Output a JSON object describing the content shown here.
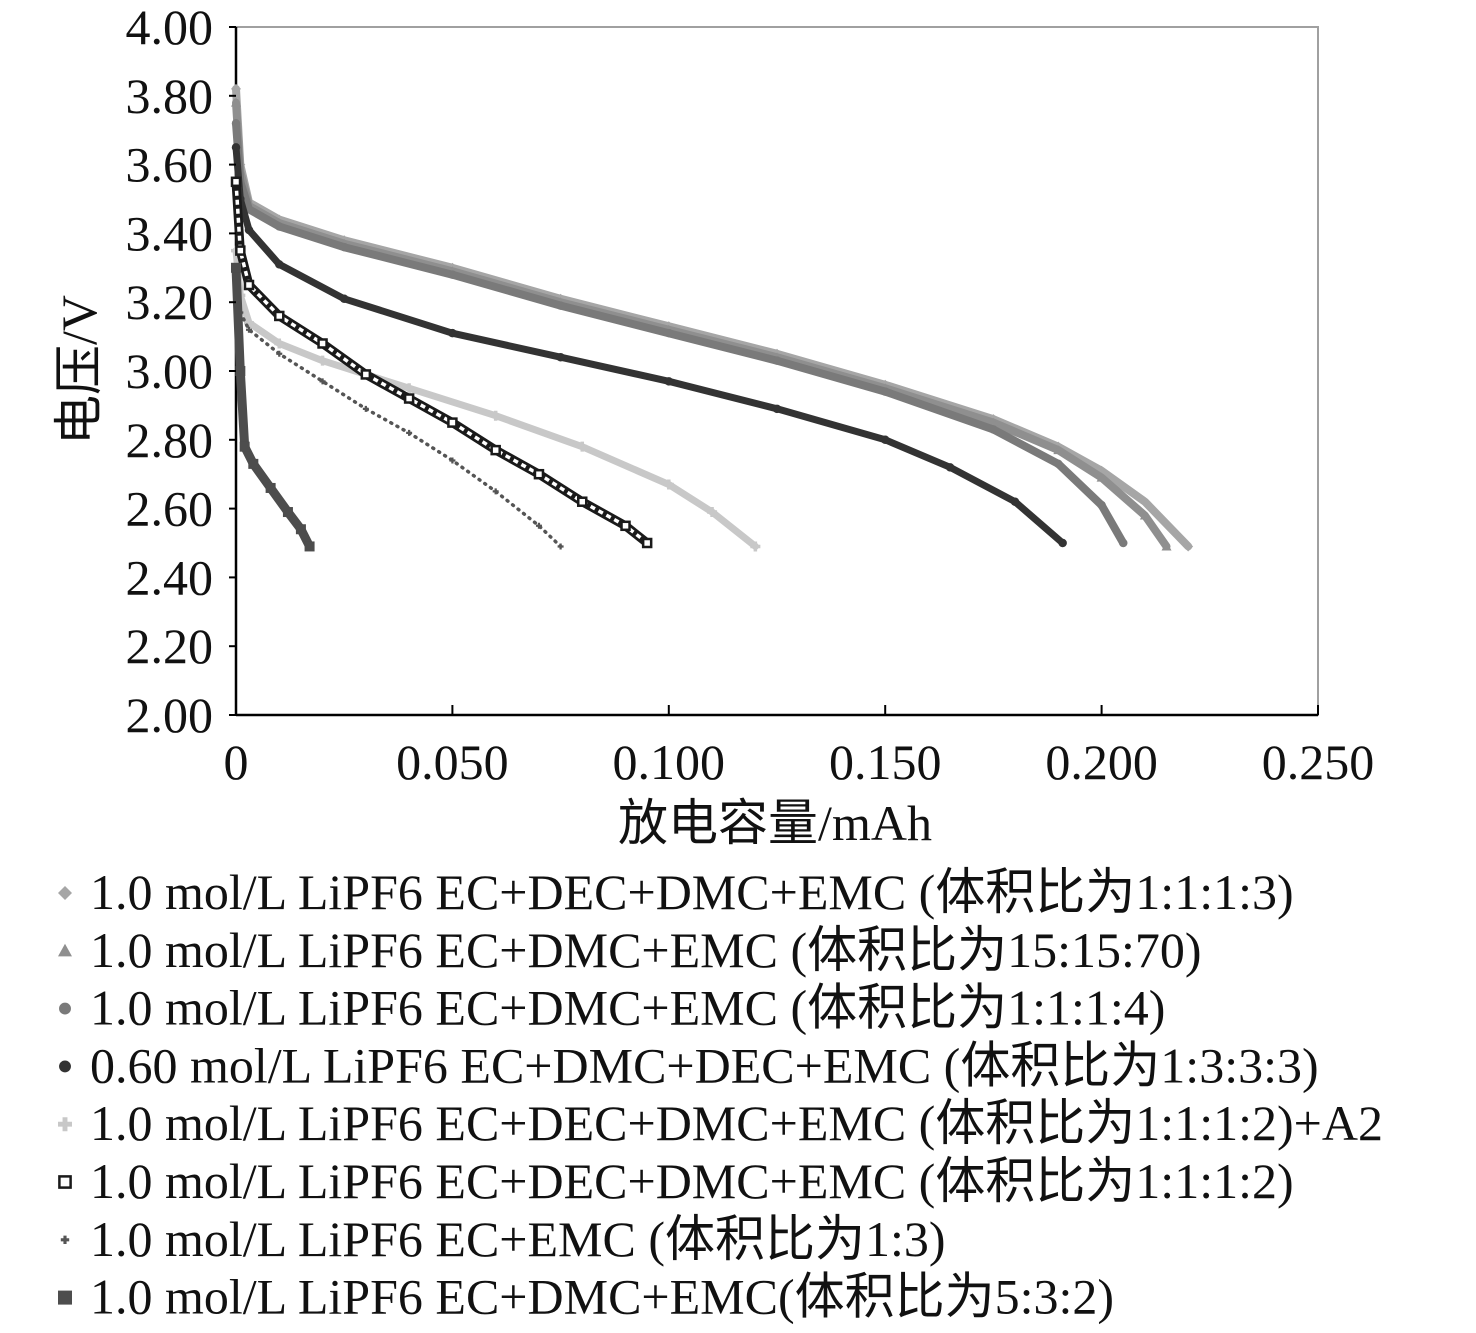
{
  "chart_data": {
    "type": "line",
    "xlabel": "放电容量/mAh",
    "ylabel": "电压/V",
    "xlim": [
      0,
      0.25
    ],
    "ylim": [
      2.0,
      4.0
    ],
    "xticks": [
      "0",
      "0.050",
      "0.100",
      "0.150",
      "0.200",
      "0.250"
    ],
    "yticks": [
      "2.00",
      "2.20",
      "2.40",
      "2.60",
      "2.80",
      "3.00",
      "3.20",
      "3.40",
      "3.60",
      "3.80",
      "4.00"
    ],
    "grid": false,
    "legend": "bottom",
    "series": [
      {
        "name": "1.0 mol/L LiPF6 EC+DEC+DMC+EMC (体积比为1:1:1:3)",
        "marker": "diamond",
        "color": "#a6a6a6",
        "x": [
          0,
          0.001,
          0.003,
          0.01,
          0.025,
          0.05,
          0.075,
          0.1,
          0.125,
          0.15,
          0.175,
          0.19,
          0.2,
          0.21,
          0.22
        ],
        "y": [
          3.82,
          3.6,
          3.49,
          3.44,
          3.38,
          3.3,
          3.21,
          3.13,
          3.05,
          2.96,
          2.86,
          2.78,
          2.71,
          2.62,
          2.49
        ]
      },
      {
        "name": "1.0 mol/L LiPF6 EC+DMC+EMC (体积比为15:15:70)",
        "marker": "triangle",
        "color": "#8f8f8f",
        "x": [
          0,
          0.001,
          0.003,
          0.01,
          0.025,
          0.05,
          0.075,
          0.1,
          0.125,
          0.15,
          0.175,
          0.19,
          0.2,
          0.21,
          0.215
        ],
        "y": [
          3.78,
          3.58,
          3.48,
          3.43,
          3.37,
          3.29,
          3.2,
          3.12,
          3.04,
          2.95,
          2.85,
          2.77,
          2.69,
          2.58,
          2.49
        ]
      },
      {
        "name": "1.0 mol/L LiPF6 EC+DMC+EMC (体积比为1:1:1:4)",
        "marker": "circle",
        "color": "#7a7a7a",
        "x": [
          0,
          0.001,
          0.003,
          0.01,
          0.025,
          0.05,
          0.075,
          0.1,
          0.125,
          0.15,
          0.175,
          0.19,
          0.2,
          0.205
        ],
        "y": [
          3.72,
          3.55,
          3.47,
          3.42,
          3.36,
          3.28,
          3.19,
          3.11,
          3.03,
          2.94,
          2.83,
          2.73,
          2.61,
          2.5
        ]
      },
      {
        "name": "0.60 mol/L LiPF6 EC+DMC+DEC+EMC (体积比为1:3:3:3)",
        "marker": "circle",
        "color": "#333333",
        "x": [
          0,
          0.001,
          0.003,
          0.01,
          0.025,
          0.05,
          0.075,
          0.1,
          0.125,
          0.15,
          0.165,
          0.18,
          0.191
        ],
        "y": [
          3.65,
          3.5,
          3.41,
          3.31,
          3.21,
          3.11,
          3.04,
          2.97,
          2.89,
          2.8,
          2.72,
          2.62,
          2.5
        ]
      },
      {
        "name": "1.0 mol/L LiPF6 EC+DEC+DMC+EMC (体积比为1:1:1:2)+A2",
        "marker": "plus",
        "color": "#c8c8c8",
        "x": [
          0,
          0.001,
          0.003,
          0.01,
          0.02,
          0.04,
          0.06,
          0.08,
          0.1,
          0.11,
          0.12
        ],
        "y": [
          3.35,
          3.22,
          3.14,
          3.08,
          3.03,
          2.95,
          2.87,
          2.78,
          2.67,
          2.59,
          2.49
        ]
      },
      {
        "name": "1.0 mol/L LiPF6 EC+DEC+DMC+EMC (体积比为1:1:1:2)",
        "marker": "open-square",
        "color": "#1a1a1a",
        "x": [
          0,
          0.001,
          0.003,
          0.01,
          0.02,
          0.03,
          0.04,
          0.05,
          0.06,
          0.07,
          0.08,
          0.09,
          0.095
        ],
        "y": [
          3.55,
          3.35,
          3.25,
          3.16,
          3.08,
          2.99,
          2.92,
          2.85,
          2.77,
          2.7,
          2.62,
          2.55,
          2.5
        ]
      },
      {
        "name": "1.0 mol/L LiPF6 EC+EMC (体积比为1:3)",
        "marker": "small-plus",
        "color": "#555555",
        "x": [
          0,
          0.001,
          0.003,
          0.01,
          0.02,
          0.03,
          0.04,
          0.05,
          0.06,
          0.07,
          0.075
        ],
        "y": [
          3.25,
          3.17,
          3.12,
          3.05,
          2.97,
          2.89,
          2.82,
          2.74,
          2.65,
          2.55,
          2.49
        ]
      },
      {
        "name": "1.0 mol/L LiPF6 EC+DMC+EMC(体积比为5:3:2)",
        "marker": "square",
        "color": "#4d4d4d",
        "x": [
          0,
          0.001,
          0.002,
          0.004,
          0.008,
          0.012,
          0.015,
          0.017
        ],
        "y": [
          3.3,
          3.0,
          2.78,
          2.73,
          2.66,
          2.59,
          2.54,
          2.49
        ]
      }
    ]
  }
}
